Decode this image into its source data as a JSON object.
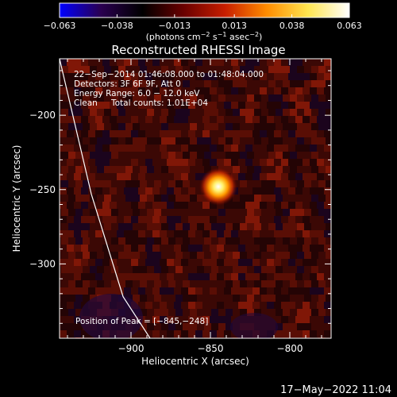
{
  "chart_data": {
    "type": "heatmap",
    "title": "Reconstructed RHESSI Image",
    "xlabel": "Heliocentric X (arcsec)",
    "ylabel": "Heliocentric Y (arcsec)",
    "xlim": [
      -945,
      -774
    ],
    "ylim": [
      -350,
      -162
    ],
    "x_ticks": [
      {
        "value": -900,
        "label": "−900"
      },
      {
        "value": -850,
        "label": "−850"
      },
      {
        "value": -800,
        "label": "−800"
      }
    ],
    "y_ticks": [
      {
        "value": -200,
        "label": "−200"
      },
      {
        "value": -250,
        "label": "−250"
      },
      {
        "value": -300,
        "label": "−300"
      }
    ],
    "colorbar": {
      "min": -0.063,
      "max": 0.063,
      "ticks": [
        {
          "value": -0.063,
          "label": "−0.063"
        },
        {
          "value": -0.038,
          "label": "−0.038"
        },
        {
          "value": -0.013,
          "label": "−0.013"
        },
        {
          "value": 0.013,
          "label": "0.013"
        },
        {
          "value": 0.038,
          "label": "0.038"
        },
        {
          "value": 0.063,
          "label": "0.063"
        }
      ],
      "unit_label": "(photons cm",
      "unit_exp1": "−2",
      "unit_mid": " s",
      "unit_exp2": "−1",
      "unit_mid2": " asec",
      "unit_exp3": "−2",
      "unit_end": ")",
      "colors": [
        "#0000ff",
        "#2a0050",
        "#000000",
        "#6a0000",
        "#c81e00",
        "#ff8c00",
        "#ffe650",
        "#ffffff"
      ]
    },
    "peak": {
      "x": -845,
      "y": -248,
      "value": 0.063
    },
    "limb_line": [
      [
        -945,
        -162
      ],
      [
        -925,
        -253
      ],
      [
        -905,
        -322
      ],
      [
        -888,
        -350
      ]
    ],
    "annotations": {
      "time_range": "22−Sep−2014 01:46:08.000 to 01:48:04.000",
      "detectors": "Detectors: 3F 6F 9F, Att 0",
      "energy": "Energy Range: 6.0 − 12.0 keV",
      "method": "Clean",
      "counts": "Total counts: 1.01E+04",
      "peak_position": "Position of Peak = [−845,−248]"
    }
  },
  "footer": {
    "date": "17−May−2022 11:04"
  }
}
